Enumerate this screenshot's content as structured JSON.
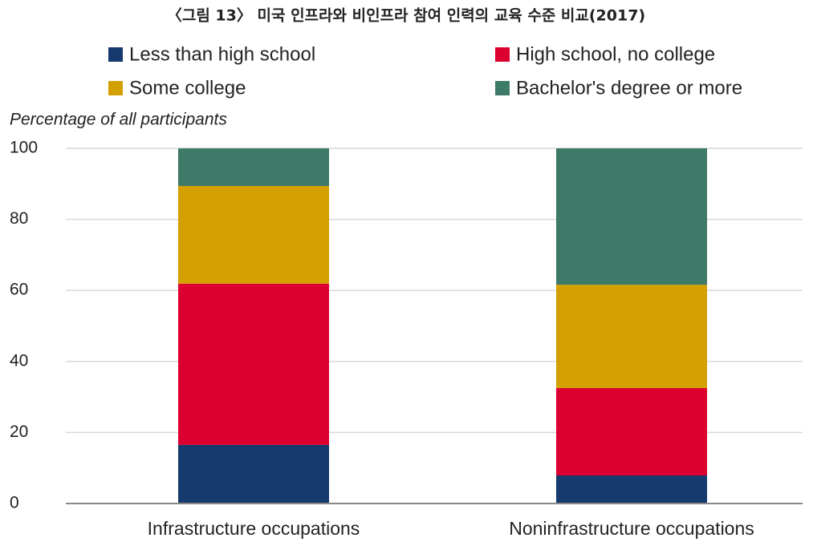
{
  "chart_data": {
    "type": "stacked_bar",
    "title": "〈그림 13〉 미국 인프라와 비인프라 참여 인력의 교육 수준 비교(2017)",
    "y_label": "Percentage of all participants",
    "categories": [
      "Infrastructure occupations",
      "Noninfrastructure occupations"
    ],
    "series": [
      {
        "name": "Less than high school",
        "color": "#163a6e",
        "values": [
          16.5,
          7.9
        ]
      },
      {
        "name": "High school, no college",
        "color": "#dc0030",
        "values": [
          45.4,
          24.6
        ]
      },
      {
        "name": "Some college",
        "color": "#d4a000",
        "values": [
          27.5,
          29.1
        ]
      },
      {
        "name": "Bachelor's degree or more",
        "color": "#3d7a68",
        "values": [
          10.6,
          38.4
        ]
      }
    ],
    "ylim": [
      0,
      100
    ],
    "yticks": [
      0,
      20,
      40,
      60,
      80,
      100
    ],
    "grid": true
  }
}
